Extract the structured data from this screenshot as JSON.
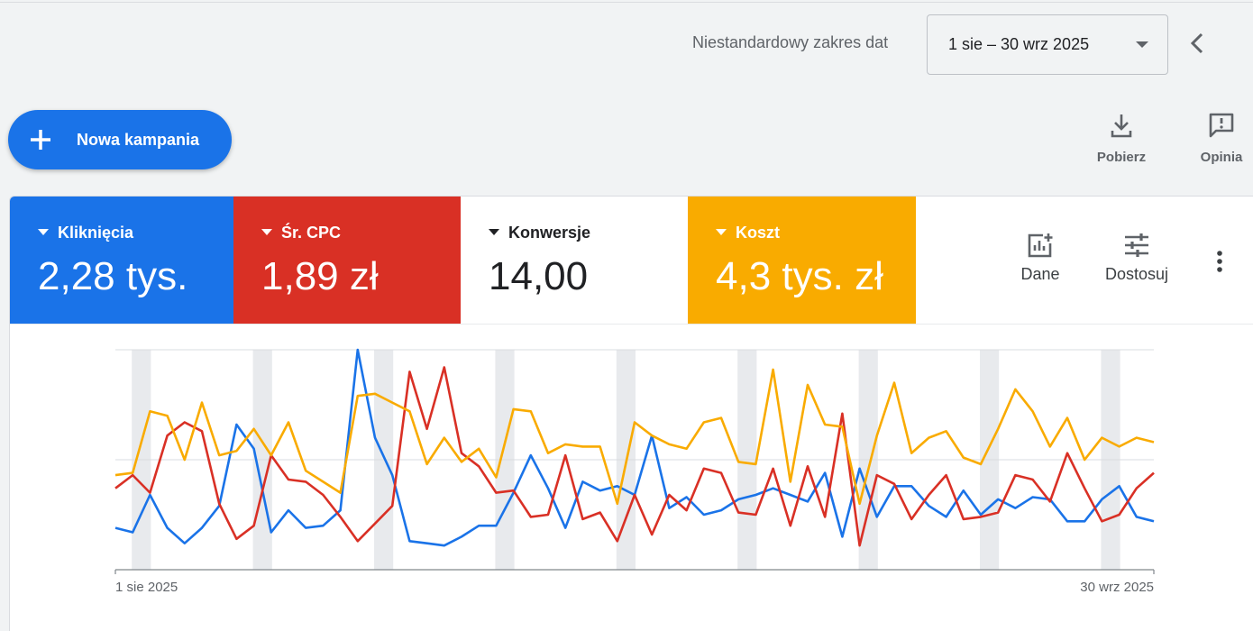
{
  "header": {
    "date_range_label": "Niestandardowy zakres dat",
    "date_range_value": "1 sie – 30 wrz 2025"
  },
  "actions": {
    "new_campaign": "Nowa kampania",
    "download": "Pobierz",
    "feedback": "Opinia"
  },
  "metrics": [
    {
      "name": "Kliknięcia",
      "value": "2,28 tys.",
      "color": "#1a73e8"
    },
    {
      "name": "Śr. CPC",
      "value": "1,89 zł",
      "color": "#d93025"
    },
    {
      "name": "Konwersje",
      "value": "14,00",
      "color": "#ffffff"
    },
    {
      "name": "Koszt",
      "value": "4,3 tys. zł",
      "color": "#f9ab00"
    }
  ],
  "chart_tools": {
    "data": "Dane",
    "customize": "Dostosuj"
  },
  "chart_data": {
    "type": "line",
    "x_start": "1 sie 2025",
    "x_end": "30 wrz 2025",
    "x": [
      "2025-08-01",
      "2025-08-02",
      "2025-08-03",
      "2025-08-04",
      "2025-08-05",
      "2025-08-06",
      "2025-08-07",
      "2025-08-08",
      "2025-08-09",
      "2025-08-10",
      "2025-08-11",
      "2025-08-12",
      "2025-08-13",
      "2025-08-14",
      "2025-08-15",
      "2025-08-16",
      "2025-08-17",
      "2025-08-18",
      "2025-08-19",
      "2025-08-20",
      "2025-08-21",
      "2025-08-22",
      "2025-08-23",
      "2025-08-24",
      "2025-08-25",
      "2025-08-26",
      "2025-08-27",
      "2025-08-28",
      "2025-08-29",
      "2025-08-30",
      "2025-08-31",
      "2025-09-01",
      "2025-09-02",
      "2025-09-03",
      "2025-09-04",
      "2025-09-05",
      "2025-09-06",
      "2025-09-07",
      "2025-09-08",
      "2025-09-09",
      "2025-09-10",
      "2025-09-11",
      "2025-09-12",
      "2025-09-13",
      "2025-09-14",
      "2025-09-15",
      "2025-09-16",
      "2025-09-17",
      "2025-09-18",
      "2025-09-19",
      "2025-09-20",
      "2025-09-21",
      "2025-09-22",
      "2025-09-23",
      "2025-09-24",
      "2025-09-25",
      "2025-09-26",
      "2025-09-27",
      "2025-09-28",
      "2025-09-29",
      "2025-09-30"
    ],
    "weekend_bands": [
      [
        "2025-08-02",
        "2025-08-03"
      ],
      [
        "2025-08-09",
        "2025-08-10"
      ],
      [
        "2025-08-16",
        "2025-08-17"
      ],
      [
        "2025-08-23",
        "2025-08-24"
      ],
      [
        "2025-08-30",
        "2025-08-31"
      ],
      [
        "2025-09-06",
        "2025-09-07"
      ],
      [
        "2025-09-13",
        "2025-09-14"
      ],
      [
        "2025-09-20",
        "2025-09-21"
      ],
      [
        "2025-09-27",
        "2025-09-28"
      ]
    ],
    "gridlines": [
      0,
      0.5,
      1
    ],
    "series": [
      {
        "name": "Kliknięcia",
        "color": "#1a73e8",
        "values": [
          0.19,
          0.17,
          0.34,
          0.19,
          0.12,
          0.19,
          0.29,
          0.66,
          0.55,
          0.17,
          0.27,
          0.19,
          0.2,
          0.27,
          1.0,
          0.6,
          0.43,
          0.13,
          0.12,
          0.11,
          0.15,
          0.2,
          0.2,
          0.35,
          0.52,
          0.37,
          0.19,
          0.4,
          0.36,
          0.38,
          0.34,
          0.61,
          0.28,
          0.33,
          0.25,
          0.27,
          0.32,
          0.34,
          0.37,
          0.34,
          0.31,
          0.44,
          0.15,
          0.46,
          0.24,
          0.38,
          0.38,
          0.29,
          0.24,
          0.36,
          0.25,
          0.32,
          0.28,
          0.33,
          0.32,
          0.22,
          0.22,
          0.32,
          0.38,
          0.24,
          0.22
        ]
      },
      {
        "name": "Śr. CPC",
        "color": "#d93025",
        "values": [
          0.37,
          0.43,
          0.35,
          0.61,
          0.67,
          0.63,
          0.3,
          0.14,
          0.2,
          0.52,
          0.41,
          0.4,
          0.34,
          0.24,
          0.13,
          0.21,
          0.29,
          0.9,
          0.64,
          0.92,
          0.53,
          0.47,
          0.35,
          0.36,
          0.24,
          0.25,
          0.52,
          0.23,
          0.26,
          0.13,
          0.34,
          0.16,
          0.34,
          0.27,
          0.46,
          0.44,
          0.26,
          0.25,
          0.46,
          0.2,
          0.47,
          0.24,
          0.71,
          0.11,
          0.43,
          0.39,
          0.23,
          0.34,
          0.43,
          0.23,
          0.24,
          0.26,
          0.43,
          0.41,
          0.31,
          0.53,
          0.37,
          0.22,
          0.25,
          0.37,
          0.44
        ]
      },
      {
        "name": "Koszt",
        "color": "#f9ab00",
        "values": [
          0.43,
          0.44,
          0.72,
          0.7,
          0.5,
          0.76,
          0.52,
          0.54,
          0.64,
          0.52,
          0.67,
          0.45,
          0.4,
          0.35,
          0.79,
          0.8,
          0.76,
          0.72,
          0.48,
          0.6,
          0.49,
          0.55,
          0.42,
          0.73,
          0.72,
          0.53,
          0.57,
          0.56,
          0.56,
          0.3,
          0.67,
          0.61,
          0.57,
          0.55,
          0.67,
          0.69,
          0.49,
          0.48,
          0.91,
          0.4,
          0.84,
          0.66,
          0.65,
          0.3,
          0.61,
          0.85,
          0.53,
          0.6,
          0.63,
          0.51,
          0.48,
          0.64,
          0.82,
          0.72,
          0.56,
          0.69,
          0.5,
          0.6,
          0.56,
          0.6,
          0.58
        ]
      }
    ]
  }
}
